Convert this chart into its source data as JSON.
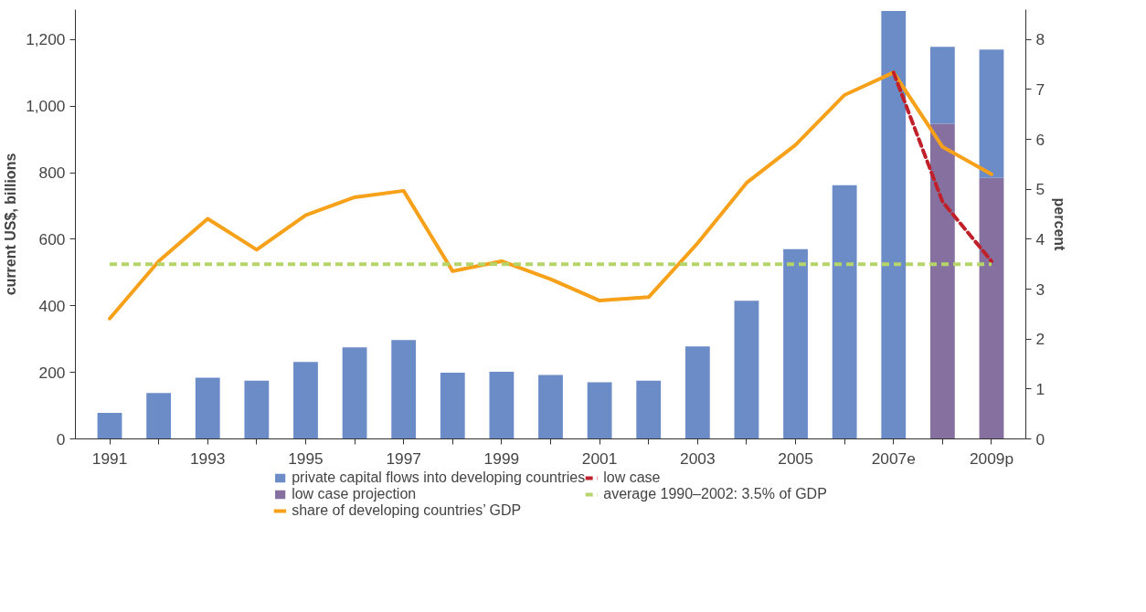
{
  "chart_data": {
    "type": "bar",
    "stacked": true,
    "categories": [
      "1991",
      null,
      "1993",
      null,
      "1995",
      null,
      "1997",
      null,
      "1999",
      null,
      "2001",
      null,
      "2003",
      null,
      "2005",
      null,
      "2007e",
      null,
      "2009p"
    ],
    "ylabel": "current US$, billions",
    "y2label": "percent",
    "ylim": [
      0,
      1290
    ],
    "yticks": [
      0,
      {
        "value": 200,
        "label": "200"
      },
      {
        "value": 400,
        "label": "400"
      },
      {
        "value": 600,
        "label": "600"
      },
      {
        "value": 800,
        "label": "800"
      },
      {
        "value": 1000,
        "label": "1,000"
      },
      {
        "value": 1200,
        "label": "1,200"
      }
    ],
    "y2lim": [
      0,
      8.6
    ],
    "y2ticks": [
      0,
      1,
      2,
      3,
      4,
      5,
      6,
      7,
      8
    ],
    "series": [
      {
        "name": "low case projection",
        "color": "#8570a0",
        "values": [
          null,
          null,
          null,
          null,
          null,
          null,
          null,
          null,
          null,
          null,
          null,
          null,
          null,
          null,
          null,
          null,
          null,
          947,
          784
        ]
      },
      {
        "name": "private capital flows into developing countries",
        "color": "#6b8cc7",
        "values": [
          78,
          138,
          184,
          175,
          231,
          275,
          297,
          199,
          202,
          192,
          170,
          175,
          278,
          415,
          570,
          762,
          1286,
          231,
          386
        ]
      },
      {
        "name": "share of developing countries’ GDP",
        "type": "line",
        "axis": "y2",
        "color": "#f7a11a",
        "line_style": "solid",
        "values": [
          2.41,
          3.56,
          4.41,
          3.79,
          4.48,
          4.84,
          4.97,
          3.36,
          3.56,
          3.2,
          2.77,
          2.84,
          3.92,
          5.13,
          5.89,
          6.89,
          7.34,
          5.85,
          5.3
        ]
      },
      {
        "name": "low case",
        "type": "line",
        "axis": "y2",
        "color": "#c0202a",
        "line_style": "dashed",
        "values": [
          null,
          null,
          null,
          null,
          null,
          null,
          null,
          null,
          null,
          null,
          null,
          null,
          null,
          null,
          null,
          null,
          7.34,
          4.75,
          3.56
        ]
      }
    ],
    "ref_lines": [
      {
        "axis": "y2",
        "value": 3.5,
        "label": "average 1990–2002: 3.5% of GDP",
        "color": "#b5d56a",
        "line_style": "dashed"
      }
    ],
    "grid": false,
    "legend": "bottom"
  }
}
